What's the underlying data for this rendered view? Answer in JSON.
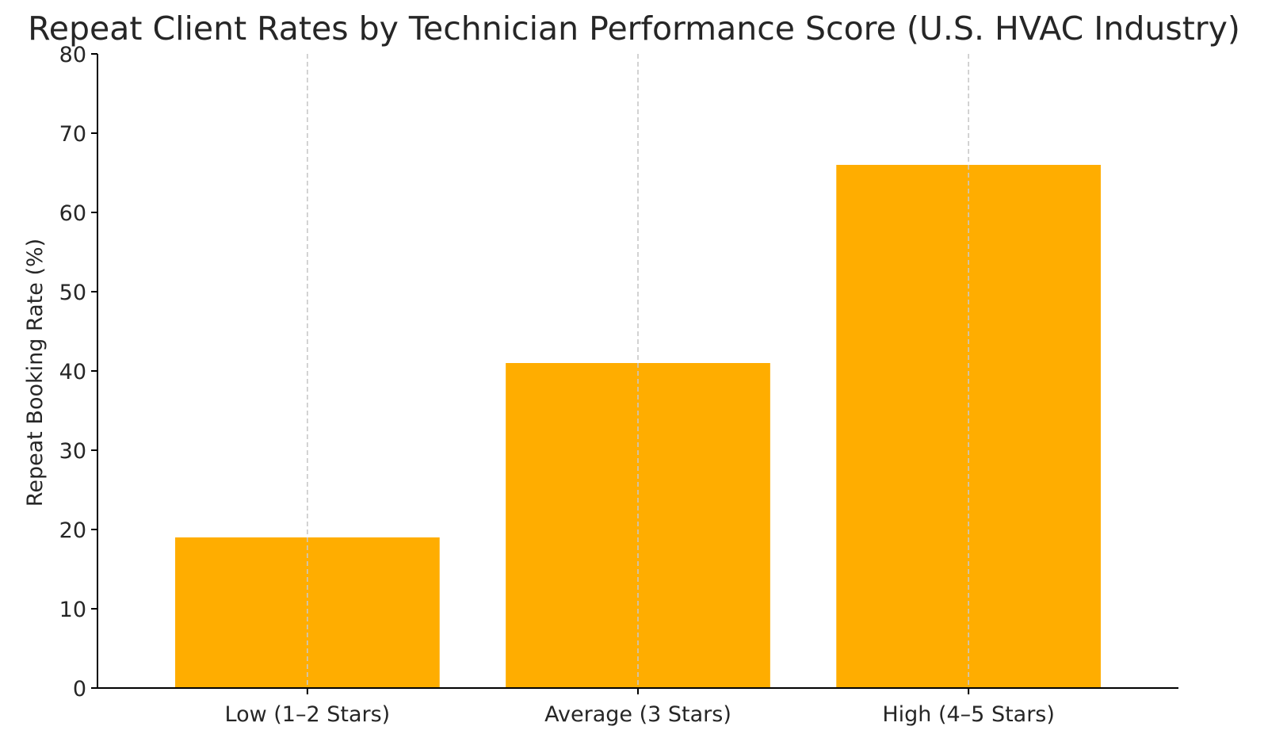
{
  "chart_data": {
    "type": "bar",
    "title": "Repeat Client Rates by Technician Performance Score (U.S. HVAC Industry)",
    "xlabel": "",
    "ylabel": "Repeat Booking Rate (%)",
    "categories": [
      "Low (1–2 Stars)",
      "Average (3 Stars)",
      "High (4–5 Stars)"
    ],
    "values": [
      19,
      41,
      66
    ],
    "ylim": [
      0,
      80
    ],
    "yticks": [
      0,
      10,
      20,
      30,
      40,
      50,
      60,
      70,
      80
    ],
    "bar_color": "#FFAD00",
    "grid": "vertical dashed on category positions",
    "legend": "none"
  }
}
